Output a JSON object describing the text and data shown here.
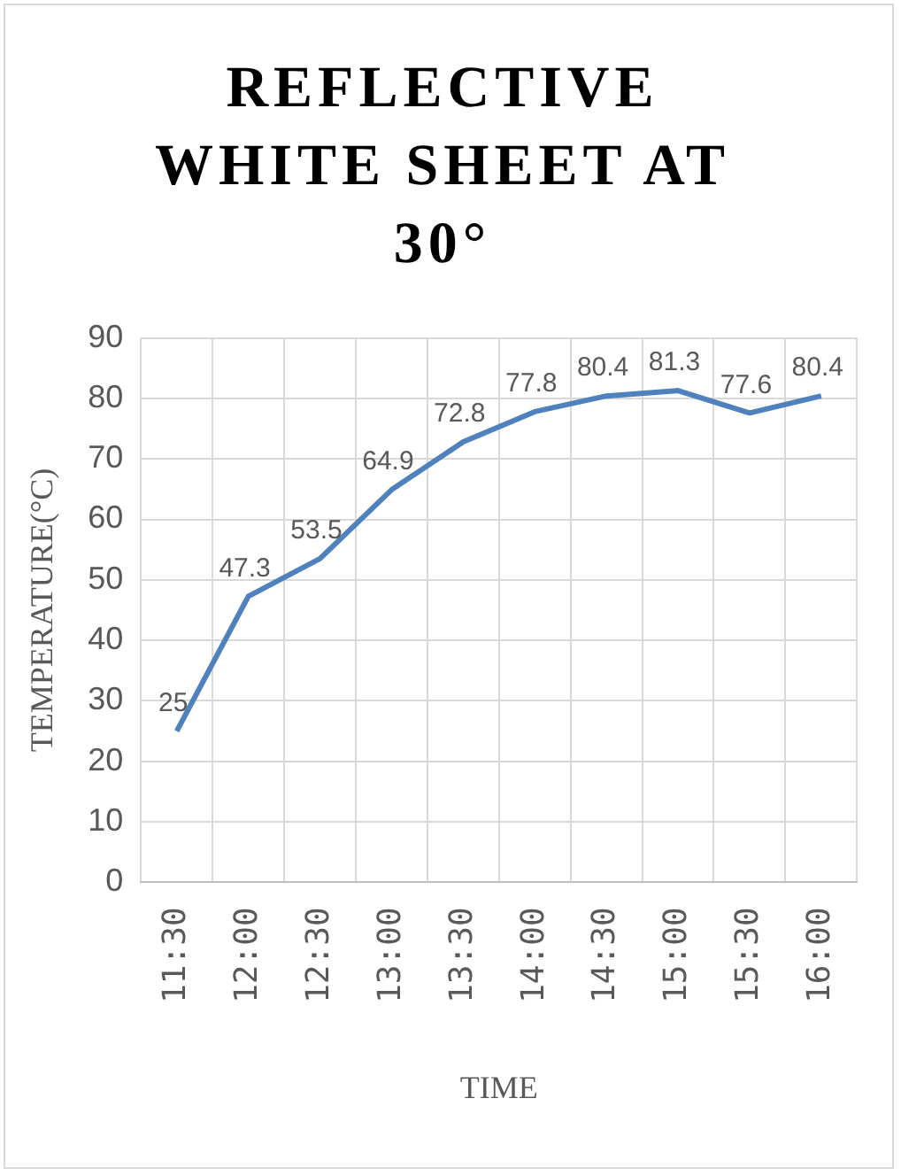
{
  "chart_data": {
    "type": "line",
    "title": "REFLECTIVE WHITE SHEET AT 30°",
    "xlabel": "TIME",
    "ylabel": "TEMPERATURE(°C)",
    "categories": [
      "11:30",
      "12:00",
      "12:30",
      "13:00",
      "13:30",
      "14:00",
      "14:30",
      "15:00",
      "15:30",
      "16:00"
    ],
    "series": [
      {
        "color": "#4f81bd",
        "values": [
          25,
          47.3,
          53.5,
          64.9,
          72.8,
          77.8,
          80.4,
          81.3,
          77.6,
          80.4
        ]
      }
    ],
    "ylim": [
      0,
      90
    ],
    "yticks": [
      0,
      10,
      20,
      30,
      40,
      50,
      60,
      70,
      80,
      90
    ],
    "grid": true,
    "data_labels": true,
    "marker": "none",
    "line_style": "solid"
  }
}
